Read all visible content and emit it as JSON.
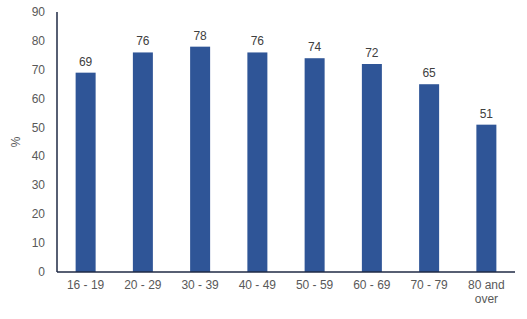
{
  "chart_data": {
    "type": "bar",
    "y_label": "%",
    "categories": [
      "16 - 19",
      "20 - 29",
      "30 - 39",
      "40 - 49",
      "50 - 59",
      "60 - 69",
      "70 - 79",
      "80 and over"
    ],
    "values": [
      69,
      76,
      78,
      76,
      74,
      72,
      65,
      51
    ],
    "color": "#2f5597",
    "ylim": [
      0,
      90
    ],
    "yticks": [
      0,
      10,
      20,
      30,
      40,
      50,
      60,
      70,
      80,
      90
    ],
    "grid": false,
    "data_labels": true
  }
}
